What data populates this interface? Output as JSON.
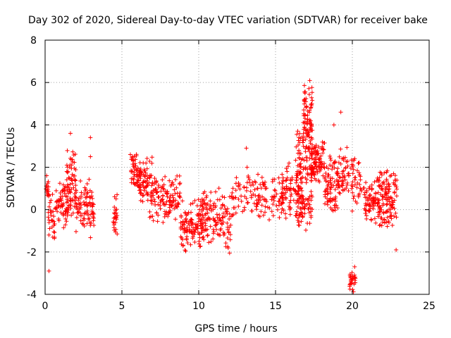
{
  "chart_data": {
    "type": "scatter",
    "title": "Day 302 of 2020, Sidereal Day-to-day VTEC variation (SDTVAR) for receiver bake",
    "xlabel": "GPS time / hours",
    "ylabel": "SDTVAR / TECUs",
    "xlim": [
      0,
      25
    ],
    "ylim": [
      -4,
      8
    ],
    "xticks": [
      0,
      5,
      10,
      15,
      20,
      25
    ],
    "yticks": [
      -4,
      -2,
      0,
      2,
      4,
      6,
      8
    ],
    "grid": true,
    "marker": "+",
    "color": "#ff0000",
    "series": [
      {
        "name": "SDTVAR",
        "segments": [
          {
            "x0": 0.0,
            "x1": 0.25,
            "ymin": 0.1,
            "ymax": 1.6,
            "n": 14
          },
          {
            "x0": 0.2,
            "x1": 0.7,
            "ymin": -1.8,
            "ymax": 0.8,
            "n": 30
          },
          {
            "x0": 0.7,
            "x1": 1.5,
            "ymin": -1.0,
            "ymax": 1.5,
            "n": 60
          },
          {
            "x0": 1.4,
            "x1": 2.0,
            "ymin": -0.5,
            "ymax": 3.1,
            "n": 70
          },
          {
            "x0": 2.0,
            "x1": 3.2,
            "ymin": -1.4,
            "ymax": 1.6,
            "n": 90
          },
          {
            "x0": 4.4,
            "x1": 4.7,
            "ymin": -1.2,
            "ymax": 0.8,
            "n": 25
          },
          {
            "x0": 5.6,
            "x1": 6.2,
            "ymin": 0.8,
            "ymax": 2.8,
            "n": 50
          },
          {
            "x0": 6.1,
            "x1": 7.0,
            "ymin": 0.0,
            "ymax": 2.6,
            "n": 70
          },
          {
            "x0": 6.8,
            "x1": 8.8,
            "ymin": -1.0,
            "ymax": 1.8,
            "n": 120
          },
          {
            "x0": 8.8,
            "x1": 10.3,
            "ymin": -2.0,
            "ymax": 0.6,
            "n": 120
          },
          {
            "x0": 10.2,
            "x1": 12.2,
            "ymin": -2.2,
            "ymax": 1.2,
            "n": 130
          },
          {
            "x0": 12.2,
            "x1": 13.7,
            "ymin": -0.5,
            "ymax": 2.0,
            "n": 50
          },
          {
            "x0": 13.7,
            "x1": 15.5,
            "ymin": -0.8,
            "ymax": 1.8,
            "n": 80
          },
          {
            "x0": 15.4,
            "x1": 16.4,
            "ymin": -0.7,
            "ymax": 2.5,
            "n": 60
          },
          {
            "x0": 16.3,
            "x1": 16.8,
            "ymin": -1.0,
            "ymax": 3.8,
            "n": 70
          },
          {
            "x0": 16.8,
            "x1": 17.4,
            "ymin": 1.0,
            "ymax": 6.5,
            "n": 120
          },
          {
            "x0": 16.4,
            "x1": 17.4,
            "ymin": -1.0,
            "ymax": 1.5,
            "n": 60
          },
          {
            "x0": 17.3,
            "x1": 18.2,
            "ymin": 1.2,
            "ymax": 3.5,
            "n": 90
          },
          {
            "x0": 18.2,
            "x1": 19.2,
            "ymin": -0.5,
            "ymax": 2.8,
            "n": 80
          },
          {
            "x0": 19.0,
            "x1": 19.8,
            "ymin": 0.2,
            "ymax": 3.0,
            "n": 50
          },
          {
            "x0": 19.8,
            "x1": 20.2,
            "ymin": -3.9,
            "ymax": -2.8,
            "n": 30
          },
          {
            "x0": 19.9,
            "x1": 20.6,
            "ymin": -0.3,
            "ymax": 3.0,
            "n": 40
          },
          {
            "x0": 20.7,
            "x1": 21.7,
            "ymin": -1.0,
            "ymax": 1.5,
            "n": 70
          },
          {
            "x0": 21.6,
            "x1": 22.3,
            "ymin": -1.3,
            "ymax": 2.1,
            "n": 70
          },
          {
            "x0": 22.2,
            "x1": 22.9,
            "ymin": -0.8,
            "ymax": 1.9,
            "n": 60
          }
        ],
        "outliers": [
          {
            "x": 0.25,
            "y": -2.9
          },
          {
            "x": 1.65,
            "y": 3.6
          },
          {
            "x": 2.95,
            "y": 3.4
          },
          {
            "x": 2.95,
            "y": 2.5
          },
          {
            "x": 5.55,
            "y": 2.6
          },
          {
            "x": 13.1,
            "y": 2.9
          },
          {
            "x": 13.15,
            "y": 2.0
          },
          {
            "x": 15.75,
            "y": 1.8
          },
          {
            "x": 19.25,
            "y": 4.6
          },
          {
            "x": 18.8,
            "y": 4.0
          },
          {
            "x": 20.15,
            "y": -2.7
          },
          {
            "x": 22.85,
            "y": -1.9
          },
          {
            "x": 0.1,
            "y": 1.6
          },
          {
            "x": 0.5,
            "y": -1.3
          }
        ]
      }
    ]
  }
}
